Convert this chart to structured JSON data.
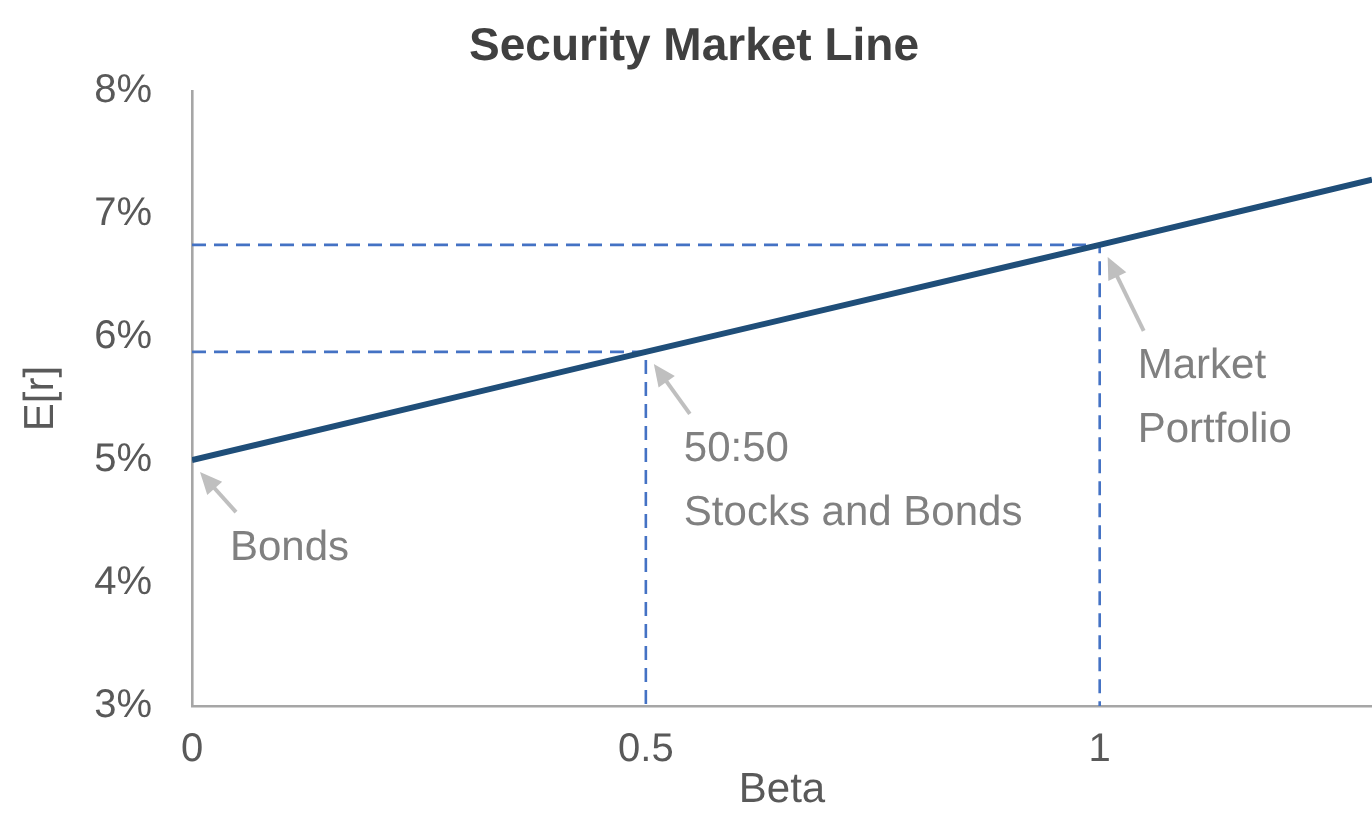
{
  "chart_data": {
    "type": "line",
    "title": "Security Market Line",
    "xlabel": "Beta",
    "ylabel": "E[r]",
    "xlim": [
      0,
      1.3
    ],
    "xticks": [
      0,
      0.5,
      1
    ],
    "ylim": [
      3,
      8
    ],
    "yticks": [
      {
        "value": 3,
        "label": "3%"
      },
      {
        "value": 4,
        "label": "4%"
      },
      {
        "value": 5,
        "label": "5%"
      },
      {
        "value": 6,
        "label": "6%"
      },
      {
        "value": 7,
        "label": "7%"
      },
      {
        "value": 8,
        "label": "8%"
      }
    ],
    "marker": "none",
    "line_style": "solid",
    "series": [
      {
        "color": "#1f4e79",
        "x": [
          0,
          0.5,
          1,
          1.3
        ],
        "values": [
          5,
          5.88,
          6.75,
          7.28
        ]
      },
      {
        "color": "#4472c4",
        "line_style": "dashed",
        "x": [
          0,
          0.5,
          0.5
        ],
        "values": [
          5.88,
          5.88,
          3
        ]
      },
      {
        "color": "#4472c4",
        "line_style": "dashed",
        "x": [
          0,
          1,
          1
        ],
        "values": [
          6.75,
          6.75,
          3
        ]
      }
    ],
    "annotations": [
      {
        "text": "Bonds",
        "x": 0,
        "y": 5
      },
      {
        "text": "50:50\nStocks and Bonds",
        "x": 0.5,
        "y": 5.88
      },
      {
        "text": "Market\nPortfolio",
        "x": 1,
        "y": 6.75
      }
    ]
  }
}
